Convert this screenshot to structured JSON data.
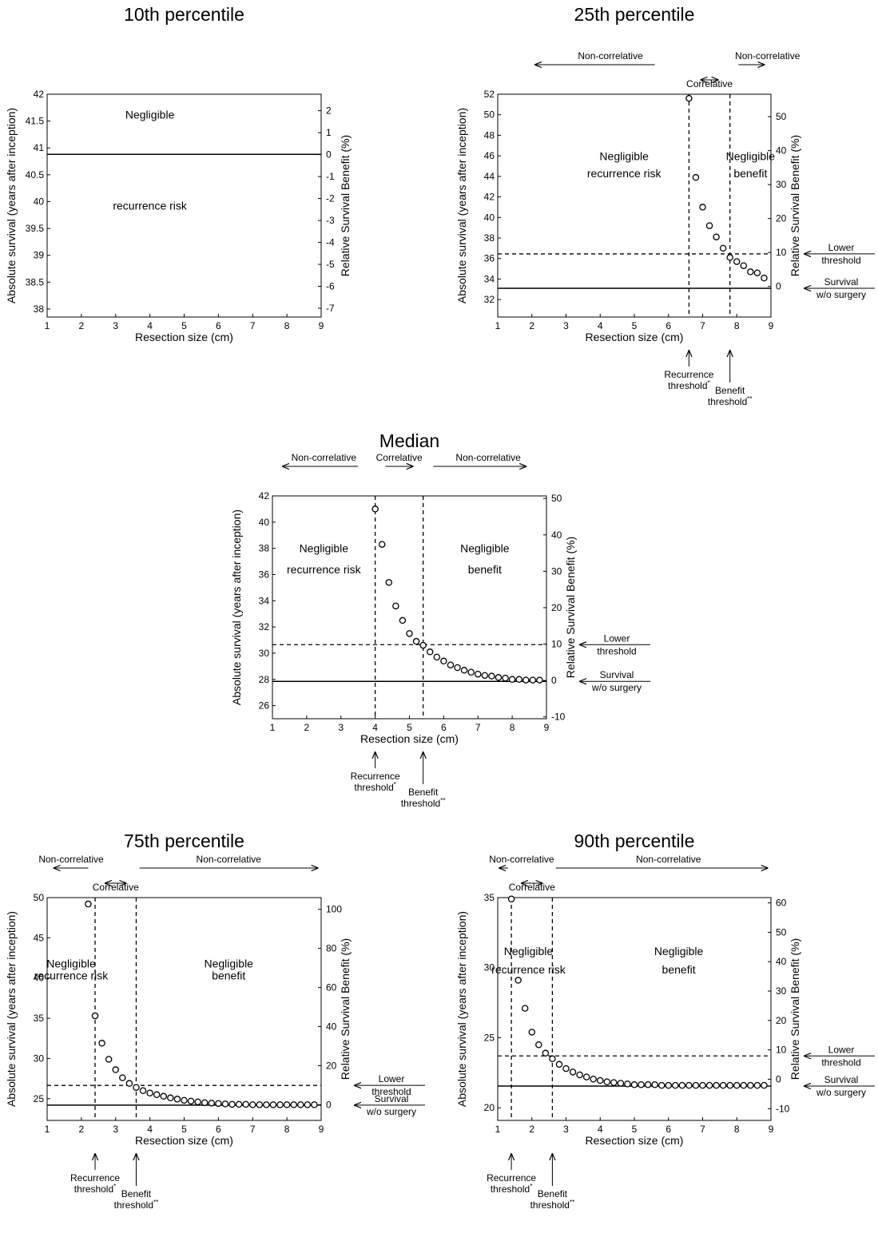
{
  "chart_data": [
    {
      "type": "scatter",
      "title": "10th percentile",
      "xlabel": "Resection size (cm)",
      "ylabel": "Absolute survival (years after inception)",
      "y2label": "Relative Survival Benefit (%)",
      "xlim": [
        1,
        9
      ],
      "ylim": [
        37.85,
        42
      ],
      "y2lim": [
        -7.4,
        2.75
      ],
      "xticks": [
        1,
        2,
        3,
        4,
        5,
        6,
        7,
        8,
        9
      ],
      "yticks": [
        38,
        38.5,
        39,
        39.5,
        40,
        40.5,
        41,
        41.5,
        42
      ],
      "y2ticks": [
        -7,
        -6,
        -5,
        -4,
        -3,
        -2,
        -1,
        0,
        1,
        2
      ],
      "baseline_survival": 40.88,
      "lower_threshold_survival": null,
      "recurrence_threshold_x": null,
      "benefit_threshold_x": null,
      "region_labels": [
        {
          "text": "Negligible",
          "x": 4.0,
          "y": 41.55
        },
        {
          "text": "recurrence risk",
          "x": 4.0,
          "y": 39.85
        }
      ],
      "bands": [],
      "side_labels": [],
      "bottom_labels": [],
      "points": []
    },
    {
      "type": "scatter",
      "title": "25th percentile",
      "xlabel": "Resection size (cm)",
      "ylabel": "Absolute survival (years after inception)",
      "y2label": "Relative Survival Benefit (%)",
      "xlim": [
        1,
        9
      ],
      "ylim": [
        30.3,
        52
      ],
      "y2lim": [
        -9,
        56.6
      ],
      "xticks": [
        1,
        2,
        3,
        4,
        5,
        6,
        7,
        8,
        9
      ],
      "yticks": [
        32,
        34,
        36,
        38,
        40,
        42,
        44,
        46,
        48,
        50,
        52
      ],
      "y2ticks": [
        0,
        10,
        20,
        30,
        40,
        50
      ],
      "baseline_survival": 33.1,
      "lower_threshold_survival": 36.45,
      "recurrence_threshold_x": 6.6,
      "benefit_threshold_x": 7.8,
      "region_labels": [
        {
          "text": "Negligible",
          "x": 4.7,
          "y": 45.6
        },
        {
          "text": "recurrence risk",
          "x": 4.7,
          "y": 43.9
        },
        {
          "text": "Negligible",
          "x": 8.4,
          "y": 45.6
        },
        {
          "text": "benefit",
          "x": 8.4,
          "y": 43.9
        }
      ],
      "bands": [
        {
          "label": "Non-correlative",
          "label_x": 4.3,
          "from": 5.6,
          "to": 2.1,
          "row": 1
        },
        {
          "label": "Correlative",
          "label_x": 7.2,
          "from": 6.95,
          "to": 7.45,
          "row": 2,
          "double": true
        },
        {
          "label": "Non-correlative",
          "label_x": 8.9,
          "from": 8.05,
          "to": 8.8,
          "row": 1
        }
      ],
      "side_labels": [
        {
          "lines": [
            "Lower",
            "threshold"
          ],
          "at": "lower"
        },
        {
          "lines": [
            "Survival",
            "w/o surgery"
          ],
          "at": "baseline"
        }
      ],
      "bottom_labels": [
        {
          "lines": [
            "Recurrence",
            "threshold"
          ],
          "mark": "*",
          "at": "recurrence",
          "offset": 0
        },
        {
          "lines": [
            "Benefit",
            "threshold"
          ],
          "mark": "**",
          "at": "benefit",
          "offset": 1
        }
      ],
      "points": [
        [
          6.6,
          51.6
        ],
        [
          6.8,
          43.9
        ],
        [
          7.0,
          41.0
        ],
        [
          7.2,
          39.2
        ],
        [
          7.4,
          38.1
        ],
        [
          7.6,
          37.0
        ],
        [
          7.8,
          36.1
        ],
        [
          8.0,
          35.7
        ],
        [
          8.2,
          35.3
        ],
        [
          8.4,
          34.7
        ],
        [
          8.6,
          34.6
        ],
        [
          8.8,
          34.1
        ]
      ]
    },
    {
      "type": "scatter",
      "title": "Median",
      "xlabel": "Resection size (cm)",
      "ylabel": "Absolute survival (years after inception)",
      "y2label": "Relative Survival Benefit (%)",
      "xlim": [
        1,
        9
      ],
      "ylim": [
        25,
        42
      ],
      "y2lim": [
        -10.5,
        50.7
      ],
      "xticks": [
        1,
        2,
        3,
        4,
        5,
        6,
        7,
        8,
        9
      ],
      "yticks": [
        26,
        28,
        30,
        32,
        34,
        36,
        38,
        40,
        42
      ],
      "y2ticks": [
        -10,
        0,
        10,
        20,
        30,
        40,
        50
      ],
      "baseline_survival": 27.85,
      "lower_threshold_survival": 30.65,
      "recurrence_threshold_x": 4.0,
      "benefit_threshold_x": 5.4,
      "region_labels": [
        {
          "text": "Negligible",
          "x": 2.5,
          "y": 37.7
        },
        {
          "text": "recurrence risk",
          "x": 2.5,
          "y": 36.1
        },
        {
          "text": "Negligible",
          "x": 7.2,
          "y": 37.7
        },
        {
          "text": "benefit",
          "x": 7.2,
          "y": 36.1
        }
      ],
      "bands": [
        {
          "label": "Non-correlative",
          "label_x": 2.5,
          "from": 3.5,
          "to": 1.3,
          "row": 1
        },
        {
          "label": "Correlative",
          "label_x": 4.7,
          "from": 4.3,
          "to": 5.1,
          "row": 1
        },
        {
          "label": "Non-correlative",
          "label_x": 7.3,
          "from": 5.7,
          "to": 8.4,
          "row": 1
        }
      ],
      "side_labels": [
        {
          "lines": [
            "Lower",
            "threshold"
          ],
          "at": "lower"
        },
        {
          "lines": [
            "Survival",
            "w/o surgery"
          ],
          "at": "baseline"
        }
      ],
      "bottom_labels": [
        {
          "lines": [
            "Recurrence",
            "threshold"
          ],
          "mark": "*",
          "at": "recurrence",
          "offset": 0
        },
        {
          "lines": [
            "Benefit",
            "threshold"
          ],
          "mark": "**",
          "at": "benefit",
          "offset": 1
        }
      ],
      "points": [
        [
          4.0,
          41.0
        ],
        [
          4.2,
          38.3
        ],
        [
          4.4,
          35.4
        ],
        [
          4.6,
          33.6
        ],
        [
          4.8,
          32.5
        ],
        [
          5.0,
          31.5
        ],
        [
          5.2,
          30.9
        ],
        [
          5.4,
          30.6
        ],
        [
          5.6,
          30.1
        ],
        [
          5.8,
          29.7
        ],
        [
          6.0,
          29.4
        ],
        [
          6.2,
          29.1
        ],
        [
          6.4,
          28.9
        ],
        [
          6.6,
          28.7
        ],
        [
          6.8,
          28.55
        ],
        [
          7.0,
          28.4
        ],
        [
          7.2,
          28.3
        ],
        [
          7.4,
          28.25
        ],
        [
          7.6,
          28.15
        ],
        [
          7.8,
          28.1
        ],
        [
          8.0,
          28.0
        ],
        [
          8.2,
          28.0
        ],
        [
          8.4,
          27.95
        ],
        [
          8.6,
          27.95
        ],
        [
          8.8,
          27.95
        ]
      ]
    },
    {
      "type": "scatter",
      "title": "75th percentile",
      "xlabel": "Resection size (cm)",
      "ylabel": "Absolute survival (years after inception)",
      "y2label": "Relative Survival Benefit (%)",
      "xlim": [
        1,
        9
      ],
      "ylim": [
        22.3,
        50
      ],
      "y2lim": [
        -8,
        106
      ],
      "xticks": [
        1,
        2,
        3,
        4,
        5,
        6,
        7,
        8,
        9
      ],
      "yticks": [
        25,
        30,
        35,
        40,
        45,
        50
      ],
      "y2ticks": [
        0,
        20,
        40,
        60,
        80,
        100
      ],
      "baseline_survival": 24.2,
      "lower_threshold_survival": 26.65,
      "recurrence_threshold_x": 2.4,
      "benefit_threshold_x": 3.6,
      "region_labels": [
        {
          "text": "Negligible",
          "x": 1.7,
          "y": 41.3
        },
        {
          "text": "recurrence risk",
          "x": 1.7,
          "y": 39.8
        },
        {
          "text": "Negligible",
          "x": 6.3,
          "y": 41.3
        },
        {
          "text": "benefit",
          "x": 6.3,
          "y": 39.8
        }
      ],
      "bands": [
        {
          "label": "Non-correlative",
          "label_x": 1.7,
          "from": 2.2,
          "to": 1.2,
          "row": 1
        },
        {
          "label": "Correlative",
          "label_x": 3.0,
          "from": 2.7,
          "to": 3.3,
          "row": 2,
          "double": true
        },
        {
          "label": "Non-correlative",
          "label_x": 6.3,
          "from": 3.7,
          "to": 8.9,
          "row": 1
        }
      ],
      "side_labels": [
        {
          "lines": [
            "Lower",
            "threshold"
          ],
          "at": "lower"
        },
        {
          "lines": [
            "Survival",
            "w/o surgery"
          ],
          "at": "baseline"
        }
      ],
      "bottom_labels": [
        {
          "lines": [
            "Recurrence",
            "threshold"
          ],
          "mark": "*",
          "at": "recurrence",
          "offset": 0
        },
        {
          "lines": [
            "Benefit",
            "threshold"
          ],
          "mark": "**",
          "at": "benefit",
          "offset": 1
        }
      ],
      "points": [
        [
          2.2,
          49.2
        ],
        [
          2.4,
          35.3
        ],
        [
          2.6,
          31.9
        ],
        [
          2.8,
          29.9
        ],
        [
          3.0,
          28.6
        ],
        [
          3.2,
          27.6
        ],
        [
          3.4,
          26.9
        ],
        [
          3.6,
          26.4
        ],
        [
          3.8,
          26.0
        ],
        [
          4.0,
          25.7
        ],
        [
          4.2,
          25.5
        ],
        [
          4.4,
          25.3
        ],
        [
          4.6,
          25.1
        ],
        [
          4.8,
          24.95
        ],
        [
          5.0,
          24.8
        ],
        [
          5.2,
          24.7
        ],
        [
          5.4,
          24.6
        ],
        [
          5.6,
          24.5
        ],
        [
          5.8,
          24.45
        ],
        [
          6.0,
          24.4
        ],
        [
          6.2,
          24.35
        ],
        [
          6.4,
          24.3
        ],
        [
          6.6,
          24.3
        ],
        [
          6.8,
          24.3
        ],
        [
          7.0,
          24.25
        ],
        [
          7.2,
          24.25
        ],
        [
          7.4,
          24.25
        ],
        [
          7.6,
          24.25
        ],
        [
          7.8,
          24.25
        ],
        [
          8.0,
          24.25
        ],
        [
          8.2,
          24.25
        ],
        [
          8.4,
          24.25
        ],
        [
          8.6,
          24.25
        ],
        [
          8.8,
          24.25
        ]
      ]
    },
    {
      "type": "scatter",
      "title": "90th percentile",
      "xlabel": "Resection size (cm)",
      "ylabel": "Absolute survival (years after inception)",
      "y2label": "Relative Survival Benefit (%)",
      "xlim": [
        1,
        9
      ],
      "ylim": [
        19.1,
        35
      ],
      "y2lim": [
        -14,
        61.8
      ],
      "xticks": [
        1,
        2,
        3,
        4,
        5,
        6,
        7,
        8,
        9
      ],
      "yticks": [
        20,
        25,
        30,
        35
      ],
      "y2ticks": [
        -10,
        0,
        10,
        20,
        30,
        40,
        50,
        60
      ],
      "baseline_survival": 21.55,
      "lower_threshold_survival": 23.7,
      "recurrence_threshold_x": 1.4,
      "benefit_threshold_x": 2.6,
      "region_labels": [
        {
          "text": "Negligible",
          "x": 1.9,
          "y": 30.9
        },
        {
          "text": "recurrence risk",
          "x": 1.9,
          "y": 29.6
        },
        {
          "text": "Negligible",
          "x": 6.3,
          "y": 30.9
        },
        {
          "text": "benefit",
          "x": 6.3,
          "y": 29.6
        }
      ],
      "bands": [
        {
          "label": "Non-correlative",
          "label_x": 1.7,
          "from": 1.3,
          "to": 1.05,
          "row": 1
        },
        {
          "label": "Correlative",
          "label_x": 2.0,
          "from": 1.7,
          "to": 2.3,
          "row": 2,
          "double": true
        },
        {
          "label": "Non-correlative",
          "label_x": 6.0,
          "from": 2.7,
          "to": 8.9,
          "row": 1
        }
      ],
      "side_labels": [
        {
          "lines": [
            "Lower",
            "threshold"
          ],
          "at": "lower"
        },
        {
          "lines": [
            "Survival",
            "w/o surgery"
          ],
          "at": "baseline"
        }
      ],
      "bottom_labels": [
        {
          "lines": [
            "Recurrence",
            "threshold"
          ],
          "mark": "*",
          "at": "recurrence",
          "offset": 0
        },
        {
          "lines": [
            "Benefit",
            "threshold"
          ],
          "mark": "**",
          "at": "benefit",
          "offset": 1
        }
      ],
      "points": [
        [
          1.4,
          34.9
        ],
        [
          1.6,
          29.1
        ],
        [
          1.8,
          27.1
        ],
        [
          2.0,
          25.4
        ],
        [
          2.2,
          24.5
        ],
        [
          2.4,
          23.9
        ],
        [
          2.6,
          23.5
        ],
        [
          2.8,
          23.1
        ],
        [
          3.0,
          22.8
        ],
        [
          3.2,
          22.55
        ],
        [
          3.4,
          22.35
        ],
        [
          3.6,
          22.2
        ],
        [
          3.8,
          22.05
        ],
        [
          4.0,
          21.95
        ],
        [
          4.2,
          21.85
        ],
        [
          4.4,
          21.8
        ],
        [
          4.6,
          21.75
        ],
        [
          4.8,
          21.7
        ],
        [
          5.0,
          21.65
        ],
        [
          5.2,
          21.65
        ],
        [
          5.4,
          21.65
        ],
        [
          5.6,
          21.65
        ],
        [
          5.8,
          21.6
        ],
        [
          6.0,
          21.6
        ],
        [
          6.2,
          21.6
        ],
        [
          6.4,
          21.6
        ],
        [
          6.6,
          21.6
        ],
        [
          6.8,
          21.6
        ],
        [
          7.0,
          21.6
        ],
        [
          7.2,
          21.6
        ],
        [
          7.4,
          21.6
        ],
        [
          7.6,
          21.6
        ],
        [
          7.8,
          21.6
        ],
        [
          8.0,
          21.6
        ],
        [
          8.2,
          21.6
        ],
        [
          8.4,
          21.6
        ],
        [
          8.6,
          21.6
        ],
        [
          8.8,
          21.6
        ]
      ]
    }
  ]
}
